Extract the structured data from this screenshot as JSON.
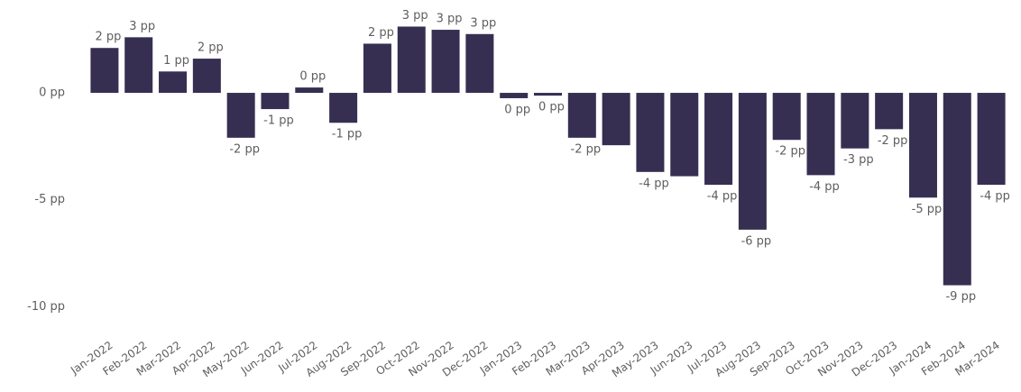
{
  "chart_data": {
    "type": "bar",
    "categories": [
      "Jan-2022",
      "Feb-2022",
      "Mar-2022",
      "Apr-2022",
      "May-2022",
      "Jun-2022",
      "Jul-2022",
      "Aug-2022",
      "Sep-2022",
      "Oct-2022",
      "Nov-2022",
      "Dec-2022",
      "Jan-2023",
      "Feb-2023",
      "Mar-2023",
      "Apr-2023",
      "May-2023",
      "Jun-2023",
      "Jul-2023",
      "Aug-2023",
      "Sep-2023",
      "Oct-2023",
      "Nov-2023",
      "Dec-2023",
      "Jan-2024",
      "Feb-2024",
      "Mar-2024"
    ],
    "values": [
      2.1,
      2.6,
      1.0,
      1.6,
      -2.1,
      -0.76,
      0.25,
      -1.4,
      2.3,
      3.1,
      2.95,
      2.75,
      -0.25,
      -0.13,
      -2.1,
      -2.45,
      -3.7,
      -3.9,
      -4.3,
      -6.4,
      -2.2,
      -3.85,
      -2.6,
      -1.7,
      -4.9,
      -9.0,
      -4.3
    ],
    "value_labels": [
      "2 pp",
      "3 pp",
      "1 pp",
      "2 pp",
      "-2 pp",
      "-1 pp",
      "0 pp",
      "-1 pp",
      "2 pp",
      "3 pp",
      "3 pp",
      "3 pp",
      "0 pp",
      "0 pp",
      "-2 pp",
      null,
      "-4 pp",
      null,
      "-4 pp",
      "-6 pp",
      "-2 pp",
      "-4 pp",
      "-3 pp",
      "-2 pp",
      "-5 pp",
      "-9 pp",
      "-4 pp"
    ],
    "color": "#372f52",
    "ylim": [
      -11,
      3.5
    ],
    "yticks": [
      {
        "value": 0,
        "label": "0 pp"
      },
      {
        "value": -5,
        "label": "-5 pp"
      },
      {
        "value": -10,
        "label": "-10 pp"
      }
    ],
    "grid": false
  }
}
